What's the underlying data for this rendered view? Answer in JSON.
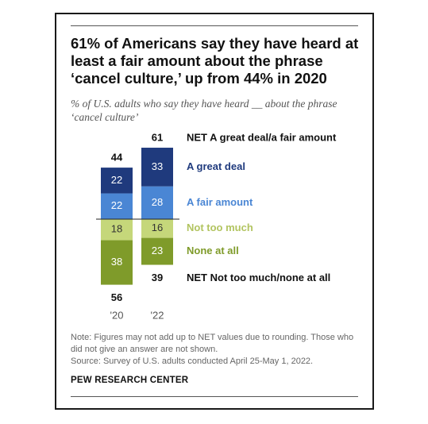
{
  "title": "61% of Americans say they have heard at least a fair amount about the phrase ‘cancel culture,’ up from 44% in 2020",
  "subtitle": "% of U.S. adults who say they have heard __ about the phrase ‘cancel culture’",
  "note": "Note: Figures may not add up to NET values due to rounding. Those who did not give an answer are not shown.",
  "source": "Source: Survey of U.S. adults conducted April 25-May 1, 2022.",
  "brand": "PEW RESEARCH CENTER",
  "colors": {
    "great_deal": "#1f3a7d",
    "fair_amount": "#4a86d4",
    "not_too_much": "#c5d77a",
    "none_at_all": "#7f9b2a",
    "text": "#111111"
  },
  "chart_data": {
    "type": "bar",
    "subtype": "diverging-stacked",
    "categories": [
      "'20",
      "'22"
    ],
    "series": [
      {
        "name": "A great deal",
        "values": [
          22,
          33
        ],
        "side": "up",
        "color": "#1f3a7d",
        "label_color": "#1f3a7d"
      },
      {
        "name": "A fair amount",
        "values": [
          22,
          28
        ],
        "side": "up",
        "color": "#4a86d4",
        "label_color": "#4a86d4"
      },
      {
        "name": "Not too much",
        "values": [
          18,
          16
        ],
        "side": "down",
        "color": "#c5d77a",
        "label_color": "#b2c460"
      },
      {
        "name": "None at all",
        "values": [
          38,
          23
        ],
        "side": "down",
        "color": "#7f9b2a",
        "label_color": "#7f9b2a"
      }
    ],
    "net_up": {
      "name": "NET A great deal/a fair amount",
      "values": [
        44,
        61
      ]
    },
    "net_down": {
      "name": "NET Not too much/none at all",
      "values": [
        56,
        39
      ]
    }
  }
}
